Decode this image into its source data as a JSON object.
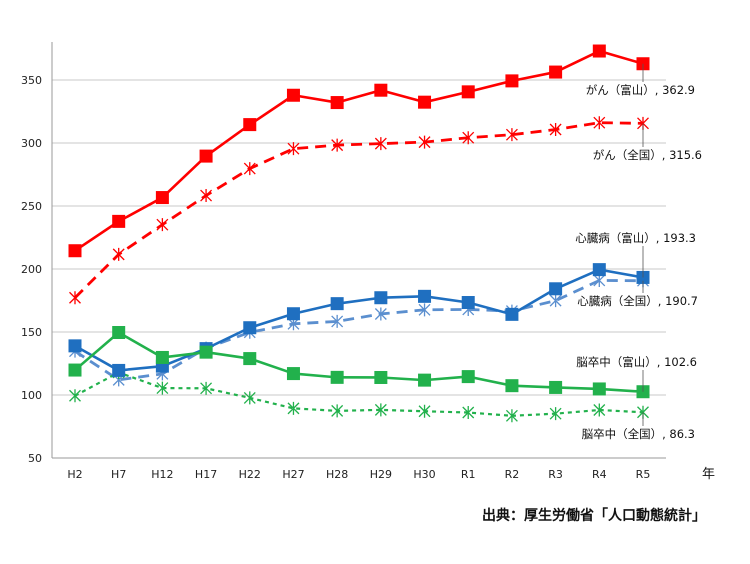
{
  "chart_data": {
    "type": "line",
    "title": "",
    "xlabel": "年",
    "ylabel": "",
    "ylim": [
      50,
      375
    ],
    "yticks": [
      50,
      100,
      150,
      200,
      250,
      300,
      350
    ],
    "grid": true,
    "categories": [
      "H2",
      "H7",
      "H12",
      "H17",
      "H22",
      "H27",
      "H28",
      "H29",
      "H30",
      "R1",
      "R2",
      "R3",
      "R4",
      "R5"
    ],
    "series": [
      {
        "name": "がん（富山）",
        "label": "がん（富山）, 362.9",
        "color": "#ff0000",
        "style": "solid",
        "marker": "square",
        "values": [
          214.5,
          237.8,
          256.7,
          289.6,
          314.6,
          337.9,
          332.1,
          341.9,
          332.4,
          340.6,
          349.3,
          356.3,
          373.0,
          362.9
        ]
      },
      {
        "name": "がん（全国）",
        "label": "がん（全国）, 315.6",
        "color": "#ff0000",
        "style": "dashed",
        "marker": "star",
        "values": [
          177.2,
          211.6,
          235.2,
          258.3,
          279.7,
          295.5,
          298.3,
          299.5,
          300.7,
          304.2,
          306.6,
          310.7,
          316.1,
          315.6
        ]
      },
      {
        "name": "心臓病（富山）",
        "label": "心臓病（富山）, 193.3",
        "color": "#1f6fc0",
        "style": "solid",
        "marker": "square",
        "values": [
          139.0,
          119.5,
          122.9,
          136.8,
          153.4,
          164.5,
          172.5,
          177.2,
          178.3,
          173.4,
          164.0,
          184.3,
          199.5,
          193.3
        ]
      },
      {
        "name": "心臓病（全国）",
        "label": "心臓病（全国）, 190.7",
        "color": "#5b8fcf",
        "style": "dashed",
        "marker": "star",
        "values": [
          134.8,
          112.0,
          116.8,
          137.2,
          149.8,
          156.5,
          158.4,
          164.3,
          167.6,
          167.9,
          166.6,
          174.9,
          190.9,
          190.7
        ]
      },
      {
        "name": "脳卒中（富山）",
        "label": "脳卒中（富山）, 102.6",
        "color": "#22b14c",
        "style": "solid",
        "marker": "square",
        "values": [
          119.8,
          149.6,
          129.8,
          134.0,
          128.9,
          117.0,
          114.0,
          113.9,
          111.8,
          114.6,
          107.4,
          106.0,
          104.8,
          102.6
        ]
      },
      {
        "name": "脳卒中（全国）",
        "label": "脳卒中（全国）, 86.3",
        "color": "#22b14c",
        "style": "dotted",
        "marker": "star",
        "values": [
          99.4,
          117.9,
          105.5,
          105.3,
          97.7,
          89.4,
          87.4,
          88.2,
          87.1,
          86.1,
          83.5,
          85.2,
          88.1,
          86.3
        ]
      }
    ]
  },
  "source": "出典：厚生労働省「人口動態統計」"
}
